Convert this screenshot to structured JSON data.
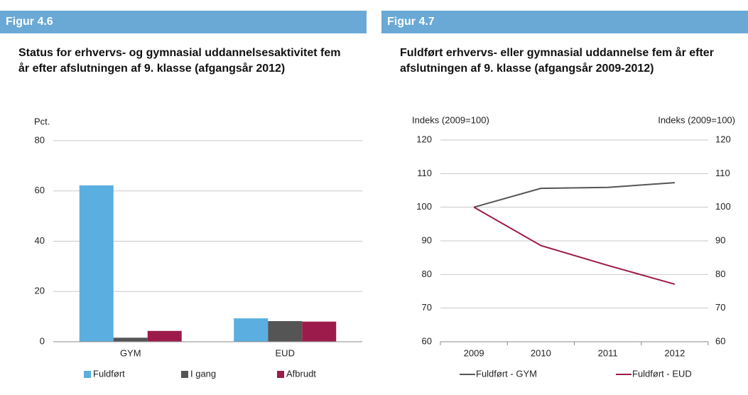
{
  "chart_data": [
    {
      "type": "bar",
      "figure_label": "Figur 4.6",
      "title": "Status for erhvervs- og gymnasial uddannelsesaktivitet fem år efter afslutningen af 9. klasse (afgangsår 2012)",
      "ylabel": "Pct.",
      "categories": [
        "GYM",
        "EUD"
      ],
      "series": [
        {
          "name": "Fuldført",
          "color": "#5aaee0",
          "values": [
            62.2,
            9.3
          ]
        },
        {
          "name": "I gang",
          "color": "#555555",
          "values": [
            1.6,
            8.2
          ]
        },
        {
          "name": "Afbrudt",
          "color": "#9c1b4a",
          "values": [
            4.3,
            8.0
          ]
        }
      ],
      "ylim": [
        0,
        80
      ],
      "yticks": [
        0,
        20,
        40,
        60,
        80
      ],
      "grid": true
    },
    {
      "type": "line",
      "figure_label": "Figur 4.7",
      "title": "Fuldført erhvervs- eller gymnasial uddannelse fem år efter afslutningen af 9. klasse (afgangsår 2009-2012)",
      "ylabel": "Indeks (2009=100)",
      "y2label": "Indeks (2009=100)",
      "categories": [
        "2009",
        "2010",
        "2011",
        "2012"
      ],
      "series": [
        {
          "name": "Fuldført - GYM",
          "color": "#555555",
          "values": [
            100,
            105.6,
            105.9,
            107.3
          ]
        },
        {
          "name": "Fuldført - EUD",
          "color": "#9c1b4a",
          "values": [
            100,
            88.6,
            82.7,
            77.1
          ]
        }
      ],
      "ylim": [
        60,
        120
      ],
      "yticks": [
        60,
        70,
        80,
        90,
        100,
        110,
        120
      ],
      "y2lim": [
        60,
        120
      ],
      "y2ticks": [
        60,
        70,
        80,
        90,
        100,
        110,
        120
      ],
      "grid": true
    }
  ]
}
